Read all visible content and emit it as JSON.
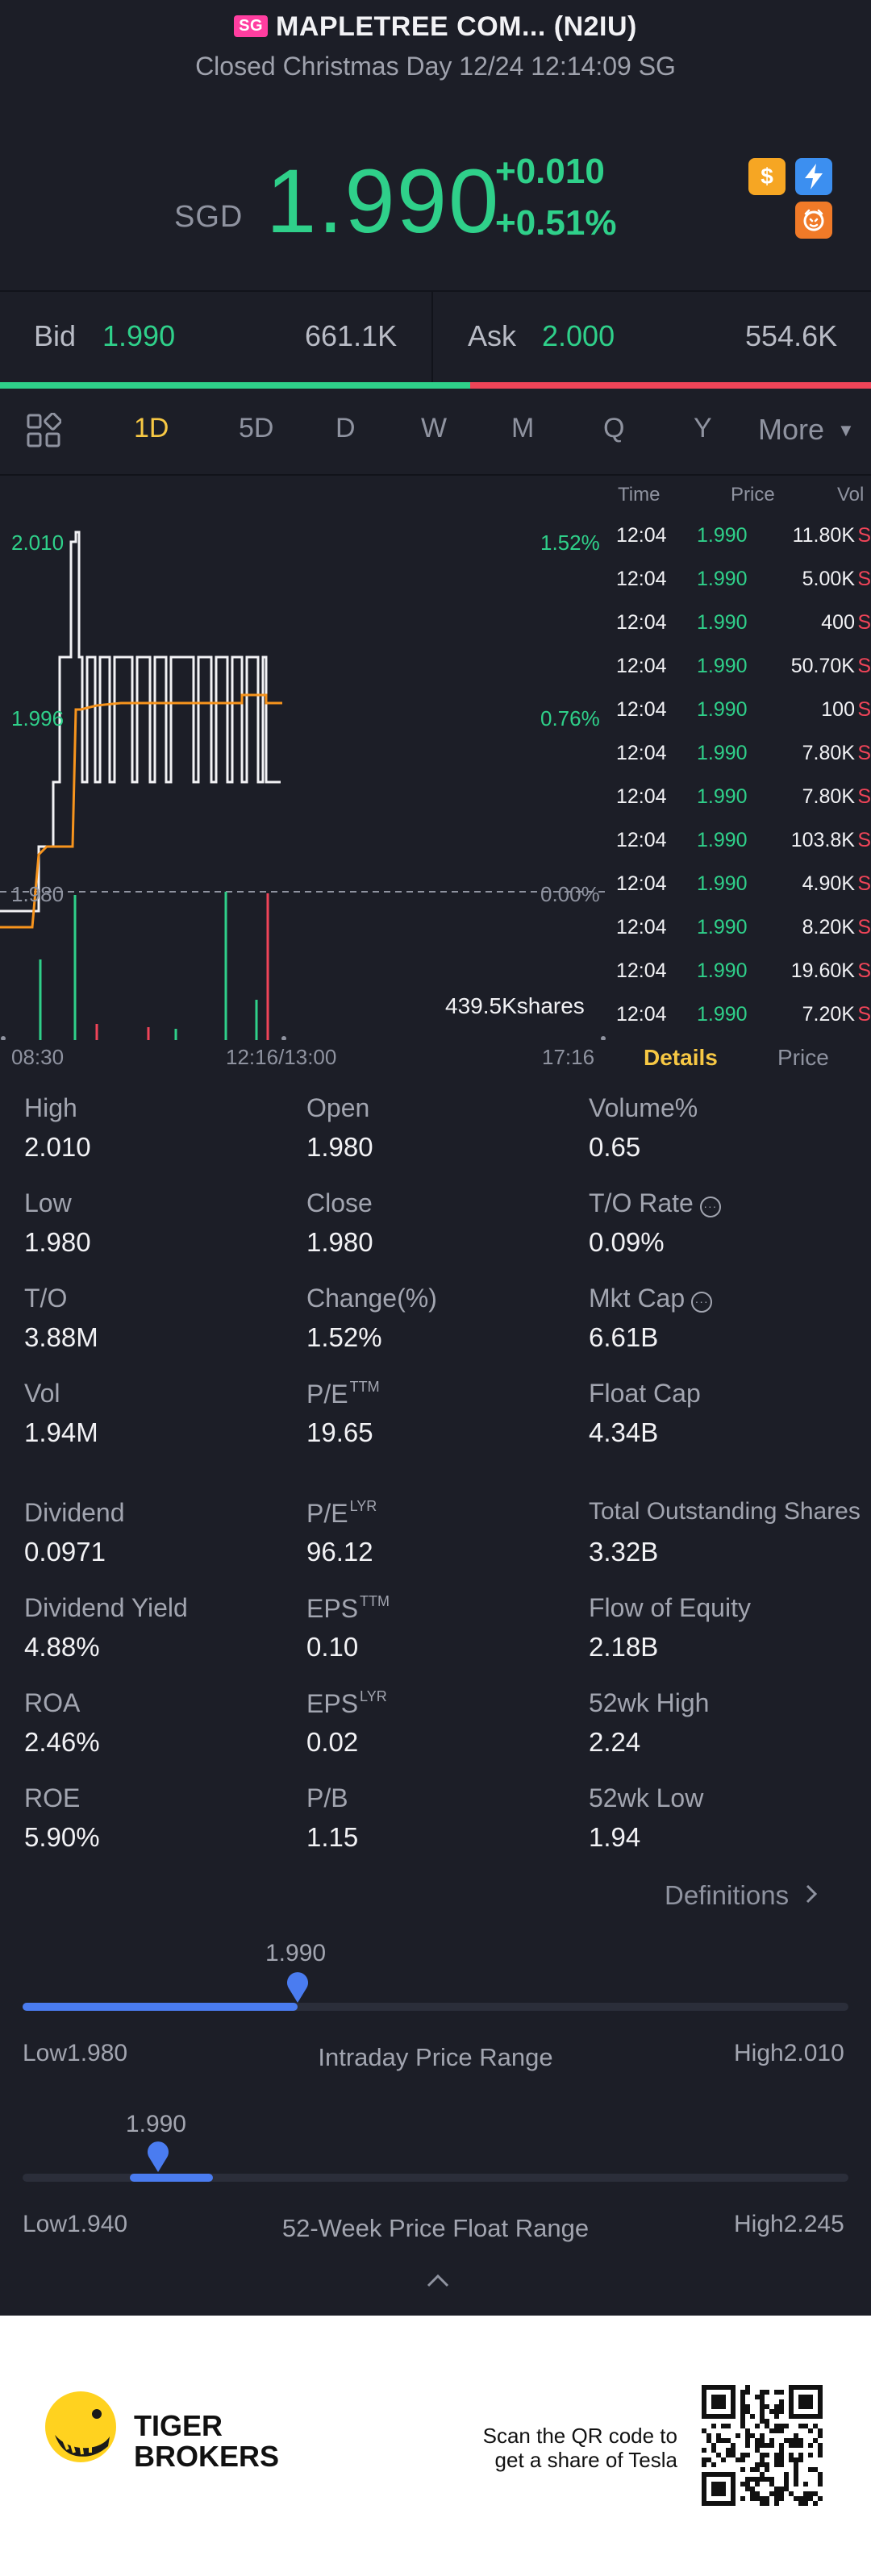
{
  "header": {
    "badge": "SG",
    "title": "MAPLETREE COM... (N2IU)",
    "subtitle": "Closed Christmas Day 12/24 12:14:09 SG"
  },
  "quote": {
    "currency": "SGD",
    "price": "1.990",
    "change": "+0.010",
    "change_pct": "+0.51%",
    "colors": {
      "up": "#2fd08a",
      "down": "#f04458",
      "accent": "#f7c844"
    },
    "icons": [
      "dollar-icon",
      "lightning-icon",
      "tiger-icon"
    ]
  },
  "bidask": {
    "bid_label": "Bid",
    "bid": "1.990",
    "bid_vol": "661.1K",
    "ask_label": "Ask",
    "ask": "2.000",
    "ask_vol": "554.6K",
    "bid_share": 0.54
  },
  "tabs": {
    "items": [
      "1D",
      "5D",
      "D",
      "W",
      "M",
      "Q",
      "Y"
    ],
    "more": "More",
    "active": "1D"
  },
  "chart": {
    "left_ticks": [
      "2.010",
      "1.996",
      "1.980"
    ],
    "right_ticks": [
      "1.52%",
      "0.76%",
      "0.00%"
    ],
    "volume_label": "439.5Kshares",
    "x_ticks": [
      "08:30",
      "12:16/13:00",
      "17:16"
    ]
  },
  "trades": {
    "headers": {
      "time": "Time",
      "price": "Price",
      "vol": "Vol"
    },
    "rows": [
      {
        "time": "12:04",
        "price": "1.990",
        "vol": "11.80K",
        "side": "S"
      },
      {
        "time": "12:04",
        "price": "1.990",
        "vol": "5.00K",
        "side": "S"
      },
      {
        "time": "12:04",
        "price": "1.990",
        "vol": "400",
        "side": "S"
      },
      {
        "time": "12:04",
        "price": "1.990",
        "vol": "50.70K",
        "side": "S"
      },
      {
        "time": "12:04",
        "price": "1.990",
        "vol": "100",
        "side": "S"
      },
      {
        "time": "12:04",
        "price": "1.990",
        "vol": "7.80K",
        "side": "S"
      },
      {
        "time": "12:04",
        "price": "1.990",
        "vol": "7.80K",
        "side": "S"
      },
      {
        "time": "12:04",
        "price": "1.990",
        "vol": "103.8K",
        "side": "S"
      },
      {
        "time": "12:04",
        "price": "1.990",
        "vol": "4.90K",
        "side": "S"
      },
      {
        "time": "12:04",
        "price": "1.990",
        "vol": "8.20K",
        "side": "S"
      },
      {
        "time": "12:04",
        "price": "1.990",
        "vol": "19.60K",
        "side": "S"
      },
      {
        "time": "12:04",
        "price": "1.990",
        "vol": "7.20K",
        "side": "S"
      }
    ],
    "tab_details": "Details",
    "tab_price": "Price"
  },
  "stats": {
    "high_label": "High",
    "high": "2.010",
    "open_label": "Open",
    "open": "1.980",
    "volpct_label": "Volume%",
    "volpct": "0.65",
    "low_label": "Low",
    "low": "1.980",
    "close_label": "Close",
    "close": "1.980",
    "torate_label": "T/O Rate",
    "torate": "0.09%",
    "to_label": "T/O",
    "to": "3.88M",
    "changepct_label": "Change(%)",
    "changepct": "1.52%",
    "mktcap_label": "Mkt Cap",
    "mktcap": "6.61B",
    "vol_label": "Vol",
    "vol": "1.94M",
    "pe_ttm_label": "P/E",
    "pe_ttm_sup": "TTM",
    "pe_ttm": "19.65",
    "floatcap_label": "Float Cap",
    "floatcap": "4.34B",
    "dividend_label": "Dividend",
    "dividend": "0.0971",
    "pe_lyr_label": "P/E",
    "pe_lyr_sup": "LYR",
    "pe_lyr": "96.12",
    "tos_label": "Total Outstanding Shares",
    "tos": "3.32B",
    "divyield_label": "Dividend Yield",
    "divyield": "4.88%",
    "eps_ttm_label": "EPS",
    "eps_ttm_sup": "TTM",
    "eps_ttm": "0.10",
    "foe_label": "Flow of Equity",
    "foe": "2.18B",
    "roa_label": "ROA",
    "roa": "2.46%",
    "eps_lyr_label": "EPS",
    "eps_lyr_sup": "LYR",
    "eps_lyr": "0.02",
    "wk52h_label": "52wk High",
    "wk52h": "2.24",
    "roe_label": "ROE",
    "roe": "5.90%",
    "pb_label": "P/B",
    "pb": "1.15",
    "wk52l_label": "52wk Low",
    "wk52l": "1.94"
  },
  "definitions": "Definitions",
  "intraday": {
    "value": "1.990",
    "low": "Low1.980",
    "high": "High2.010",
    "title": "Intraday Price Range",
    "position": 0.333
  },
  "week52": {
    "value": "1.990",
    "low": "Low1.940",
    "high": "High2.245",
    "title": "52-Week Price Float Range",
    "position": 0.164,
    "fill_start": 0.13,
    "fill_end": 0.23
  },
  "footer": {
    "brand_line1": "TIGER",
    "brand_line2": "BROKERS",
    "scan_line1": "Scan the QR code to",
    "scan_line2": "get a share of Tesla"
  }
}
